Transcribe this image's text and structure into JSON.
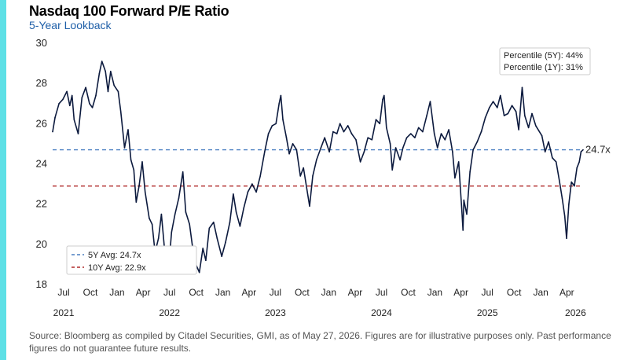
{
  "header": {
    "title": "Nasdaq 100 Forward P/E Ratio",
    "subtitle": "5-Year Lookback"
  },
  "footer": {
    "source": "Source: Bloomberg as compiled by Citadel Securities, GMI, as of May 27, 2026. Figures are for illustrative purposes only. Past performance figures do not guarantee future results."
  },
  "colors": {
    "accent_bar": "#5ee0e6",
    "series_line": "#0c1a3e",
    "avg_5y": "#4a7fc1",
    "avg_10y": "#b02a2a",
    "subtitle": "#1f5fa8"
  },
  "chart_data": {
    "type": "line",
    "ylim": [
      18,
      30
    ],
    "yticks": [
      18,
      20,
      22,
      24,
      26,
      28,
      30
    ],
    "xlim": [
      "2021-05-24",
      "2026-05-27"
    ],
    "xticks": [
      {
        "date": "2021-07-01",
        "label": "Jul"
      },
      {
        "date": "2021-10-01",
        "label": "Oct"
      },
      {
        "date": "2022-01-01",
        "label": "Jan"
      },
      {
        "date": "2022-04-01",
        "label": "Apr"
      },
      {
        "date": "2022-07-01",
        "label": "Jul"
      },
      {
        "date": "2022-10-01",
        "label": "Oct"
      },
      {
        "date": "2023-01-01",
        "label": "Jan"
      },
      {
        "date": "2023-04-01",
        "label": "Apr"
      },
      {
        "date": "2023-07-01",
        "label": "Jul"
      },
      {
        "date": "2023-10-01",
        "label": "Oct"
      },
      {
        "date": "2024-01-01",
        "label": "Jan"
      },
      {
        "date": "2024-04-01",
        "label": "Apr"
      },
      {
        "date": "2024-07-01",
        "label": "Jul"
      },
      {
        "date": "2024-10-01",
        "label": "Oct"
      },
      {
        "date": "2025-01-01",
        "label": "Jan"
      },
      {
        "date": "2025-04-01",
        "label": "Apr"
      },
      {
        "date": "2025-07-01",
        "label": "Jul"
      },
      {
        "date": "2025-10-01",
        "label": "Oct"
      },
      {
        "date": "2026-01-01",
        "label": "Jan"
      },
      {
        "date": "2026-04-01",
        "label": "Apr"
      }
    ],
    "year_labels": [
      {
        "date": "2021-07-01",
        "label": "2021"
      },
      {
        "date": "2022-07-01",
        "label": "2022"
      },
      {
        "date": "2023-07-01",
        "label": "2023"
      },
      {
        "date": "2024-07-01",
        "label": "2024"
      },
      {
        "date": "2025-07-01",
        "label": "2025"
      },
      {
        "date": "2026-05-01",
        "label": "2026"
      }
    ],
    "grid": false,
    "series": [
      {
        "points": [
          [
            "2021-05-24",
            25.6
          ],
          [
            "2021-06-01",
            26.3
          ],
          [
            "2021-06-15",
            27.0
          ],
          [
            "2021-06-28",
            27.2
          ],
          [
            "2021-07-12",
            27.6
          ],
          [
            "2021-07-22",
            26.9
          ],
          [
            "2021-07-30",
            27.4
          ],
          [
            "2021-08-06",
            26.2
          ],
          [
            "2021-08-20",
            25.5
          ],
          [
            "2021-09-02",
            27.3
          ],
          [
            "2021-09-15",
            27.8
          ],
          [
            "2021-09-28",
            27.0
          ],
          [
            "2021-10-08",
            26.8
          ],
          [
            "2021-10-20",
            27.4
          ],
          [
            "2021-11-01",
            28.5
          ],
          [
            "2021-11-10",
            29.1
          ],
          [
            "2021-11-22",
            28.6
          ],
          [
            "2021-12-01",
            27.6
          ],
          [
            "2021-12-10",
            28.6
          ],
          [
            "2021-12-22",
            27.9
          ],
          [
            "2022-01-05",
            27.6
          ],
          [
            "2022-01-14",
            26.6
          ],
          [
            "2022-01-27",
            24.8
          ],
          [
            "2022-02-08",
            25.7
          ],
          [
            "2022-02-18",
            24.2
          ],
          [
            "2022-02-28",
            23.7
          ],
          [
            "2022-03-08",
            22.1
          ],
          [
            "2022-03-18",
            22.9
          ],
          [
            "2022-03-29",
            24.1
          ],
          [
            "2022-04-08",
            22.6
          ],
          [
            "2022-04-22",
            21.3
          ],
          [
            "2022-05-02",
            21.0
          ],
          [
            "2022-05-12",
            19.6
          ],
          [
            "2022-05-24",
            20.3
          ],
          [
            "2022-06-03",
            21.5
          ],
          [
            "2022-06-16",
            19.4
          ],
          [
            "2022-06-28",
            18.8
          ],
          [
            "2022-07-08",
            20.6
          ],
          [
            "2022-07-20",
            21.5
          ],
          [
            "2022-08-02",
            22.3
          ],
          [
            "2022-08-16",
            23.6
          ],
          [
            "2022-08-26",
            21.6
          ],
          [
            "2022-09-08",
            21.0
          ],
          [
            "2022-09-20",
            19.7
          ],
          [
            "2022-09-30",
            19.0
          ],
          [
            "2022-10-12",
            18.6
          ],
          [
            "2022-10-24",
            19.8
          ],
          [
            "2022-11-03",
            19.2
          ],
          [
            "2022-11-15",
            20.8
          ],
          [
            "2022-11-30",
            21.1
          ],
          [
            "2022-12-12",
            20.3
          ],
          [
            "2022-12-28",
            19.4
          ],
          [
            "2023-01-10",
            20.1
          ],
          [
            "2023-01-25",
            21.1
          ],
          [
            "2023-02-06",
            22.5
          ],
          [
            "2023-02-16",
            21.6
          ],
          [
            "2023-03-01",
            20.9
          ],
          [
            "2023-03-14",
            21.8
          ],
          [
            "2023-03-28",
            22.6
          ],
          [
            "2023-04-12",
            23.0
          ],
          [
            "2023-04-26",
            22.6
          ],
          [
            "2023-05-10",
            23.4
          ],
          [
            "2023-05-25",
            24.6
          ],
          [
            "2023-06-07",
            25.5
          ],
          [
            "2023-06-20",
            25.9
          ],
          [
            "2023-07-03",
            26.0
          ],
          [
            "2023-07-14",
            27.0
          ],
          [
            "2023-07-20",
            27.4
          ],
          [
            "2023-07-27",
            26.2
          ],
          [
            "2023-08-08",
            25.3
          ],
          [
            "2023-08-18",
            24.5
          ],
          [
            "2023-08-30",
            25.0
          ],
          [
            "2023-09-12",
            24.7
          ],
          [
            "2023-09-25",
            23.4
          ],
          [
            "2023-10-06",
            23.8
          ],
          [
            "2023-10-18",
            22.7
          ],
          [
            "2023-10-27",
            21.9
          ],
          [
            "2023-11-07",
            23.4
          ],
          [
            "2023-11-20",
            24.2
          ],
          [
            "2023-12-05",
            24.8
          ],
          [
            "2023-12-18",
            25.3
          ],
          [
            "2024-01-03",
            24.6
          ],
          [
            "2024-01-16",
            25.6
          ],
          [
            "2024-01-29",
            25.5
          ],
          [
            "2024-02-09",
            26.0
          ],
          [
            "2024-02-22",
            25.6
          ],
          [
            "2024-03-07",
            25.9
          ],
          [
            "2024-03-20",
            25.5
          ],
          [
            "2024-04-04",
            25.2
          ],
          [
            "2024-04-19",
            24.1
          ],
          [
            "2024-05-02",
            24.6
          ],
          [
            "2024-05-15",
            25.3
          ],
          [
            "2024-05-29",
            25.2
          ],
          [
            "2024-06-12",
            26.2
          ],
          [
            "2024-06-25",
            26.0
          ],
          [
            "2024-07-05",
            27.2
          ],
          [
            "2024-07-10",
            27.4
          ],
          [
            "2024-07-18",
            25.8
          ],
          [
            "2024-07-31",
            25.0
          ],
          [
            "2024-08-07",
            23.7
          ],
          [
            "2024-08-19",
            24.8
          ],
          [
            "2024-09-03",
            24.2
          ],
          [
            "2024-09-13",
            24.8
          ],
          [
            "2024-09-26",
            25.3
          ],
          [
            "2024-10-10",
            25.5
          ],
          [
            "2024-10-24",
            25.3
          ],
          [
            "2024-11-06",
            25.8
          ],
          [
            "2024-11-20",
            25.6
          ],
          [
            "2024-12-04",
            26.4
          ],
          [
            "2024-12-16",
            27.1
          ],
          [
            "2024-12-30",
            25.5
          ],
          [
            "2025-01-10",
            24.8
          ],
          [
            "2025-01-23",
            25.5
          ],
          [
            "2025-02-05",
            25.2
          ],
          [
            "2025-02-18",
            25.7
          ],
          [
            "2025-03-03",
            24.6
          ],
          [
            "2025-03-11",
            23.3
          ],
          [
            "2025-03-24",
            24.1
          ],
          [
            "2025-04-04",
            21.7
          ],
          [
            "2025-04-08",
            20.7
          ],
          [
            "2025-04-11",
            22.2
          ],
          [
            "2025-04-21",
            21.5
          ],
          [
            "2025-05-02",
            23.6
          ],
          [
            "2025-05-13",
            24.7
          ],
          [
            "2025-05-27",
            25.1
          ],
          [
            "2025-06-10",
            25.6
          ],
          [
            "2025-06-24",
            26.3
          ],
          [
            "2025-07-08",
            26.8
          ],
          [
            "2025-07-21",
            27.1
          ],
          [
            "2025-08-04",
            26.8
          ],
          [
            "2025-08-15",
            27.4
          ],
          [
            "2025-08-28",
            26.4
          ],
          [
            "2025-09-10",
            26.5
          ],
          [
            "2025-09-24",
            26.9
          ],
          [
            "2025-10-08",
            26.6
          ],
          [
            "2025-10-17",
            25.7
          ],
          [
            "2025-10-29",
            27.8
          ],
          [
            "2025-11-07",
            26.4
          ],
          [
            "2025-11-20",
            25.8
          ],
          [
            "2025-12-02",
            26.5
          ],
          [
            "2025-12-15",
            25.9
          ],
          [
            "2026-01-05",
            25.4
          ],
          [
            "2026-01-16",
            24.6
          ],
          [
            "2026-01-28",
            25.1
          ],
          [
            "2026-02-10",
            24.3
          ],
          [
            "2026-02-23",
            24.1
          ],
          [
            "2026-03-06",
            23.2
          ],
          [
            "2026-03-16",
            22.3
          ],
          [
            "2026-03-25",
            21.4
          ],
          [
            "2026-03-31",
            20.3
          ],
          [
            "2026-04-08",
            22.0
          ],
          [
            "2026-04-17",
            23.1
          ],
          [
            "2026-04-27",
            22.9
          ],
          [
            "2026-05-06",
            23.8
          ],
          [
            "2026-05-14",
            24.1
          ],
          [
            "2026-05-20",
            24.6
          ],
          [
            "2026-05-27",
            24.7
          ]
        ]
      }
    ],
    "reference_lines": [
      {
        "name": "5Y Avg: 24.7x",
        "value": 24.7,
        "style": "dashed",
        "color": "#4a7fc1"
      },
      {
        "name": "10Y Avg: 22.9x",
        "value": 22.9,
        "style": "dashed",
        "color": "#b02a2a"
      }
    ],
    "end_label": "24.7x",
    "legend_position": "bottom-left",
    "annotation_box": {
      "position": "top-right",
      "lines": [
        "Percentile (5Y): 44%",
        "Percentile (1Y): 31%"
      ]
    }
  }
}
